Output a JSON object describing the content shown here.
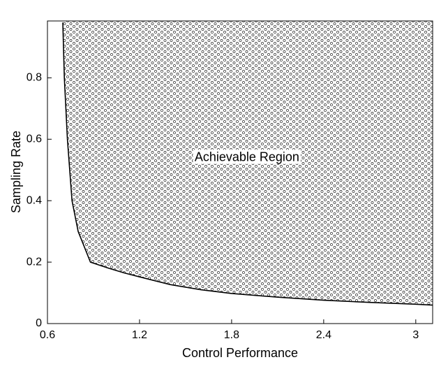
{
  "chart_data": {
    "type": "area",
    "xlabel": "Control Performance",
    "ylabel": "Sampling Rate",
    "annotation": {
      "text": "Achievable Region",
      "x": 1.9,
      "y": 0.54
    },
    "x": [
      0.7,
      0.71,
      0.73,
      0.76,
      0.8,
      0.88,
      1.0,
      1.1,
      1.2,
      1.4,
      1.6,
      1.8,
      2.1,
      2.4,
      2.7,
      3.0,
      3.11
    ],
    "values": [
      0.98,
      0.8,
      0.6,
      0.4,
      0.3,
      0.2,
      0.18,
      0.165,
      0.152,
      0.127,
      0.11,
      0.098,
      0.086,
      0.076,
      0.069,
      0.063,
      0.06
    ],
    "color": "#000000",
    "xlim": [
      0.6,
      3.11
    ],
    "ylim": [
      0,
      0.985
    ],
    "xticks": [
      0.6,
      1.2,
      1.8,
      2.4,
      3
    ],
    "yticks": [
      0,
      0.2,
      0.4,
      0.6,
      0.8
    ]
  }
}
